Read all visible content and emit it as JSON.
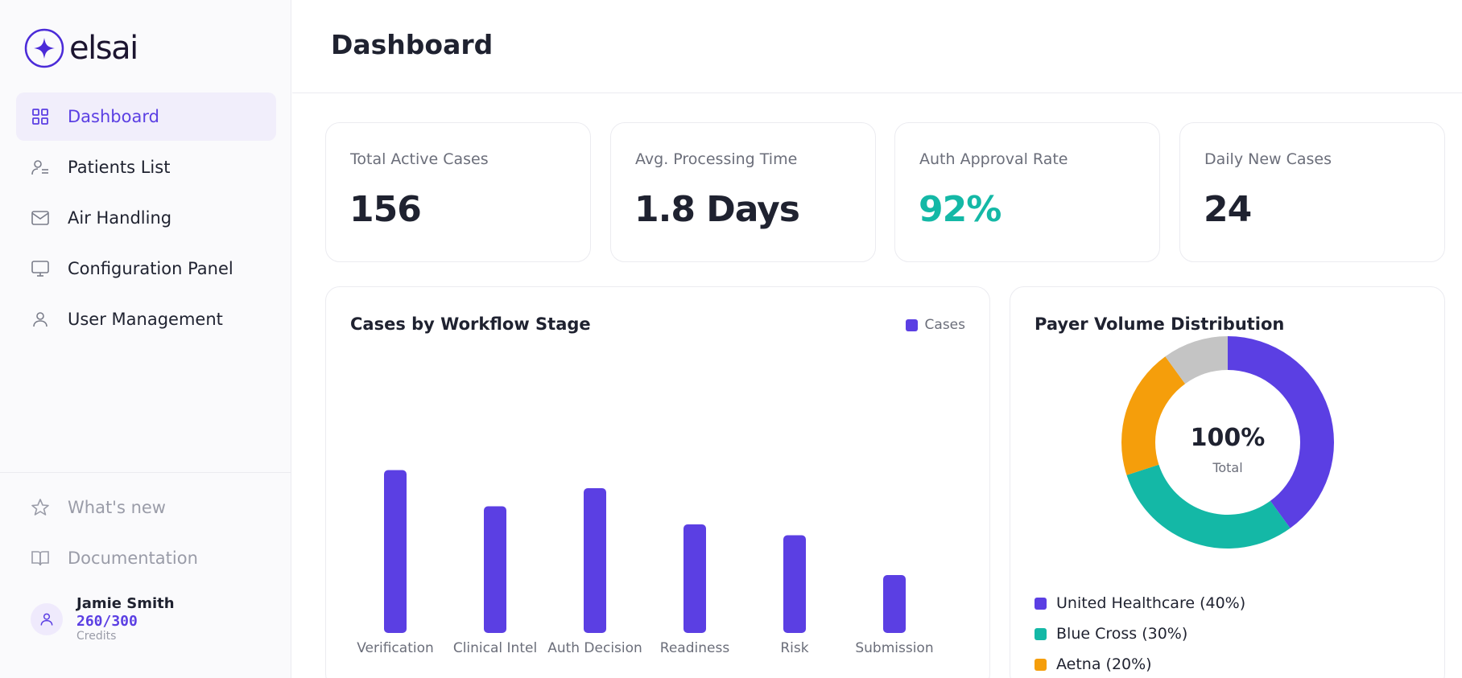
{
  "brand": {
    "name": "elsai"
  },
  "sidebar": {
    "items": [
      {
        "label": "Dashboard",
        "icon": "grid-icon",
        "active": true
      },
      {
        "label": "Patients List",
        "icon": "user-list-icon",
        "active": false
      },
      {
        "label": "Air Handling",
        "icon": "mail-icon",
        "active": false
      },
      {
        "label": "Configuration Panel",
        "icon": "monitor-icon",
        "active": false
      },
      {
        "label": "User Management",
        "icon": "user-icon",
        "active": false
      }
    ],
    "bottom_items": [
      {
        "label": "What's new",
        "icon": "star-icon"
      },
      {
        "label": "Documentation",
        "icon": "book-icon"
      }
    ],
    "user": {
      "name": "Jamie Smith",
      "credits": "260/300",
      "credits_label": "Credits"
    }
  },
  "header": {
    "title": "Dashboard"
  },
  "stats": [
    {
      "label": "Total Active Cases",
      "value": "156"
    },
    {
      "label": "Avg. Processing Time",
      "value": "1.8 Days"
    },
    {
      "label": "Auth Approval Rate",
      "value": "92%",
      "color": "#14b8a6"
    },
    {
      "label": "Daily New Cases",
      "value": "24"
    }
  ],
  "colors": {
    "accent": "#5b3fe3",
    "bar": "#5b3fe3",
    "teal": "#14b8a6",
    "orange": "#f59e0b",
    "gray": "#c4c4c4"
  },
  "chart_data": [
    {
      "type": "bar",
      "title": "Cases by Workflow Stage",
      "categories": [
        "Verification",
        "Clinical Intel",
        "Auth Decision",
        "Readiness",
        "Risk",
        "Submission"
      ],
      "series": [
        {
          "name": "Cases",
          "values": [
            45,
            35,
            40,
            30,
            27,
            16
          ]
        }
      ],
      "ylim": [
        0,
        50
      ],
      "grid": false,
      "legend": "top-right"
    },
    {
      "type": "pie",
      "title": "Payer Volume Distribution",
      "center_value": "100%",
      "center_label": "Total",
      "slices": [
        {
          "label": "United Healthcare (40%)",
          "value": 40,
          "color": "#5b3fe3"
        },
        {
          "label": "Blue Cross (30%)",
          "value": 30,
          "color": "#14b8a6"
        },
        {
          "label": "Aetna (20%)",
          "value": 20,
          "color": "#f59e0b"
        },
        {
          "label": "",
          "value": 10,
          "color": "#c4c4c4"
        }
      ],
      "legend": "bottom"
    }
  ]
}
